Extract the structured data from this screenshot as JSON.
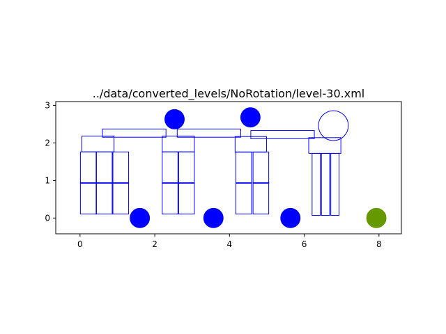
{
  "chart_data": {
    "type": "scatter",
    "title": "../data/converted_levels/NoRotation/level-30.xml",
    "xlabel": "",
    "ylabel": "",
    "xlim": [
      -0.65,
      8.6
    ],
    "ylim": [
      -0.42,
      3.1
    ],
    "aspect": "equal",
    "grid": false,
    "x_ticks": [
      0,
      2,
      4,
      6,
      8
    ],
    "y_ticks": [
      0,
      1,
      2,
      3
    ],
    "colors": {
      "outline": "#0000ff",
      "pig": "#0000ff",
      "bird": "#669900"
    },
    "blocks": [
      {
        "cx": 0.22,
        "cy": 1.34,
        "w": 0.42,
        "h": 0.84
      },
      {
        "cx": 0.65,
        "cy": 1.34,
        "w": 0.42,
        "h": 0.84
      },
      {
        "cx": 1.09,
        "cy": 1.34,
        "w": 0.42,
        "h": 0.84
      },
      {
        "cx": 0.22,
        "cy": 0.52,
        "w": 0.42,
        "h": 0.84
      },
      {
        "cx": 0.65,
        "cy": 0.52,
        "w": 0.42,
        "h": 0.84
      },
      {
        "cx": 1.09,
        "cy": 0.52,
        "w": 0.42,
        "h": 0.84
      },
      {
        "cx": 0.48,
        "cy": 1.97,
        "w": 0.86,
        "h": 0.42
      },
      {
        "cx": 1.45,
        "cy": 2.26,
        "w": 1.7,
        "h": 0.22
      },
      {
        "cx": 2.41,
        "cy": 1.34,
        "w": 0.42,
        "h": 0.84
      },
      {
        "cx": 2.85,
        "cy": 1.34,
        "w": 0.42,
        "h": 0.84
      },
      {
        "cx": 2.41,
        "cy": 0.52,
        "w": 0.42,
        "h": 0.84
      },
      {
        "cx": 2.85,
        "cy": 0.52,
        "w": 0.42,
        "h": 0.84
      },
      {
        "cx": 2.63,
        "cy": 1.97,
        "w": 0.86,
        "h": 0.42
      },
      {
        "cx": 3.45,
        "cy": 2.26,
        "w": 1.7,
        "h": 0.22
      },
      {
        "cx": 4.38,
        "cy": 1.34,
        "w": 0.42,
        "h": 0.84
      },
      {
        "cx": 4.84,
        "cy": 1.34,
        "w": 0.42,
        "h": 0.84
      },
      {
        "cx": 4.38,
        "cy": 0.52,
        "w": 0.42,
        "h": 0.84
      },
      {
        "cx": 4.84,
        "cy": 0.52,
        "w": 0.42,
        "h": 0.84
      },
      {
        "cx": 4.57,
        "cy": 1.96,
        "w": 0.84,
        "h": 0.42
      },
      {
        "cx": 5.42,
        "cy": 2.22,
        "w": 1.7,
        "h": 0.22
      },
      {
        "cx": 6.32,
        "cy": 0.89,
        "w": 0.22,
        "h": 1.66
      },
      {
        "cx": 6.57,
        "cy": 0.89,
        "w": 0.22,
        "h": 1.66
      },
      {
        "cx": 6.82,
        "cy": 0.89,
        "w": 0.22,
        "h": 1.66
      },
      {
        "cx": 6.55,
        "cy": 1.93,
        "w": 0.86,
        "h": 0.42
      }
    ],
    "circles": [
      {
        "kind": "pig",
        "x": 2.53,
        "y": 2.63,
        "r": 0.26,
        "filled": true
      },
      {
        "kind": "pig",
        "x": 4.56,
        "y": 2.68,
        "r": 0.26,
        "filled": true
      },
      {
        "kind": "pig-hollow",
        "x": 6.78,
        "y": 2.46,
        "r": 0.4,
        "filled": false
      },
      {
        "kind": "pig",
        "x": 1.6,
        "y": 0.0,
        "r": 0.26,
        "filled": true
      },
      {
        "kind": "pig",
        "x": 3.57,
        "y": 0.0,
        "r": 0.26,
        "filled": true
      },
      {
        "kind": "pig",
        "x": 5.63,
        "y": 0.0,
        "r": 0.26,
        "filled": true
      },
      {
        "kind": "bird",
        "x": 7.93,
        "y": 0.0,
        "r": 0.26,
        "filled": true
      }
    ]
  }
}
